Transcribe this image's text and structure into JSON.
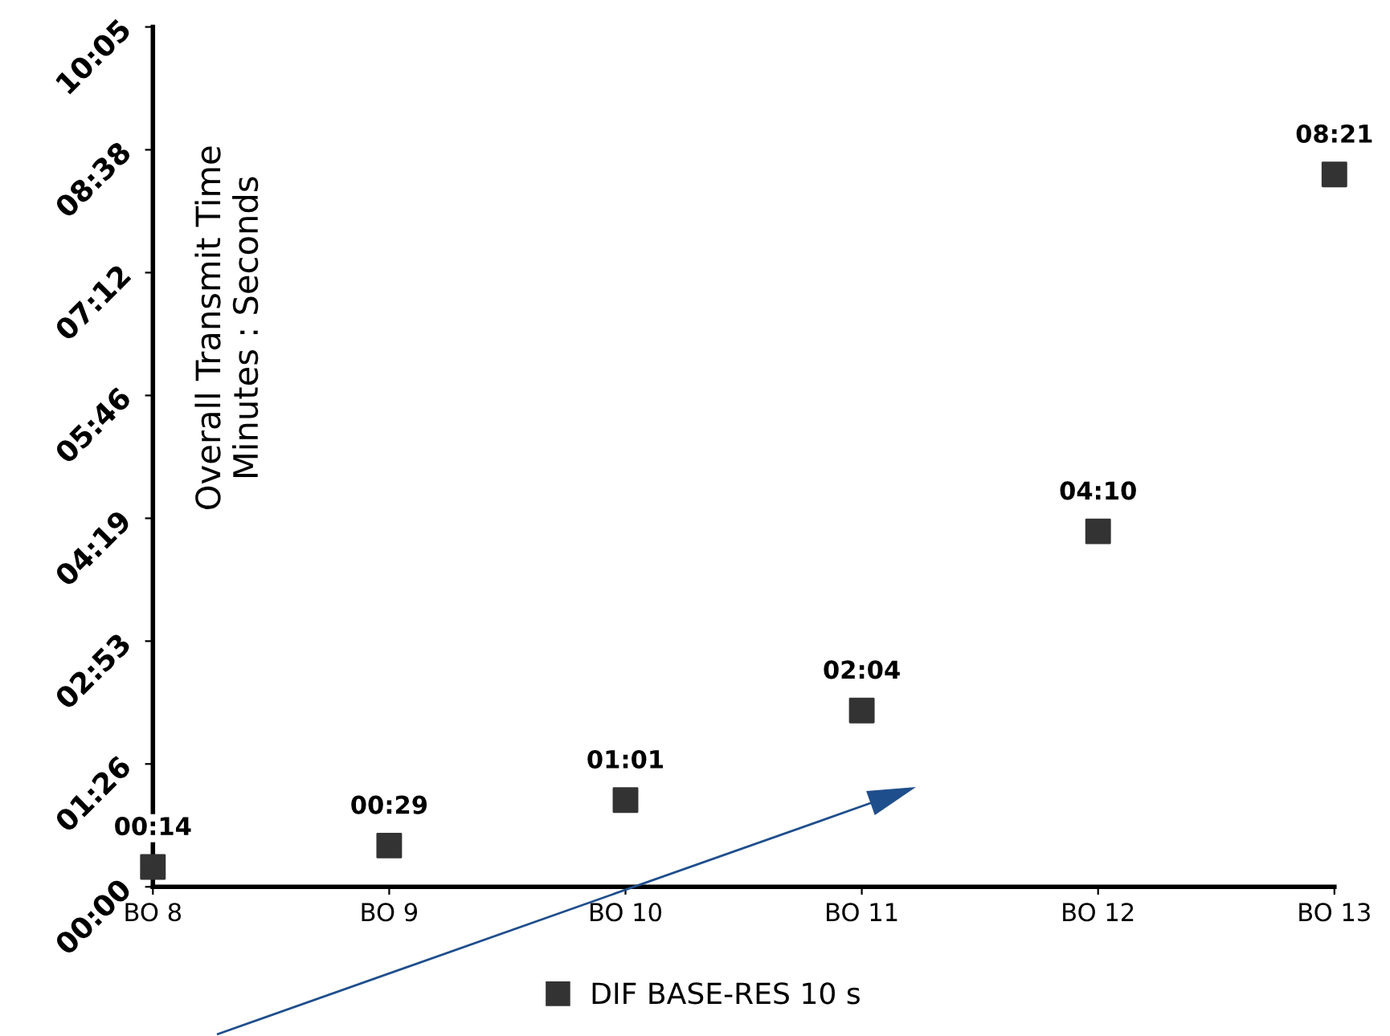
{
  "chart_data": {
    "type": "scatter",
    "ylabel": "Overall Transmit Time\nMinutes : Seconds",
    "categories": [
      "BO 8",
      "BO 9",
      "BO 10",
      "BO 11",
      "BO 12",
      "BO 13"
    ],
    "series": [
      {
        "name": "DIF BASE-RES 10 s",
        "color": "#333333",
        "values": [
          14,
          29,
          61,
          124,
          250,
          501
        ],
        "value_labels": [
          "00:14",
          "00:29",
          "01:01",
          "02:04",
          "04:10",
          "08:21"
        ]
      }
    ],
    "ylim": [
      0,
      604.8
    ],
    "yticks": [
      {
        "value": 0,
        "label": "00:00"
      },
      {
        "value": 86.4,
        "label": "01:26"
      },
      {
        "value": 172.8,
        "label": "02:53"
      },
      {
        "value": 259.2,
        "label": "04:19"
      },
      {
        "value": 345.6,
        "label": "05:46"
      },
      {
        "value": 432,
        "label": "07:12"
      },
      {
        "value": 518.4,
        "label": "08:38"
      },
      {
        "value": 604.8,
        "label": "10:05"
      }
    ],
    "marker": "square",
    "grid": false,
    "legend": "bottom"
  }
}
